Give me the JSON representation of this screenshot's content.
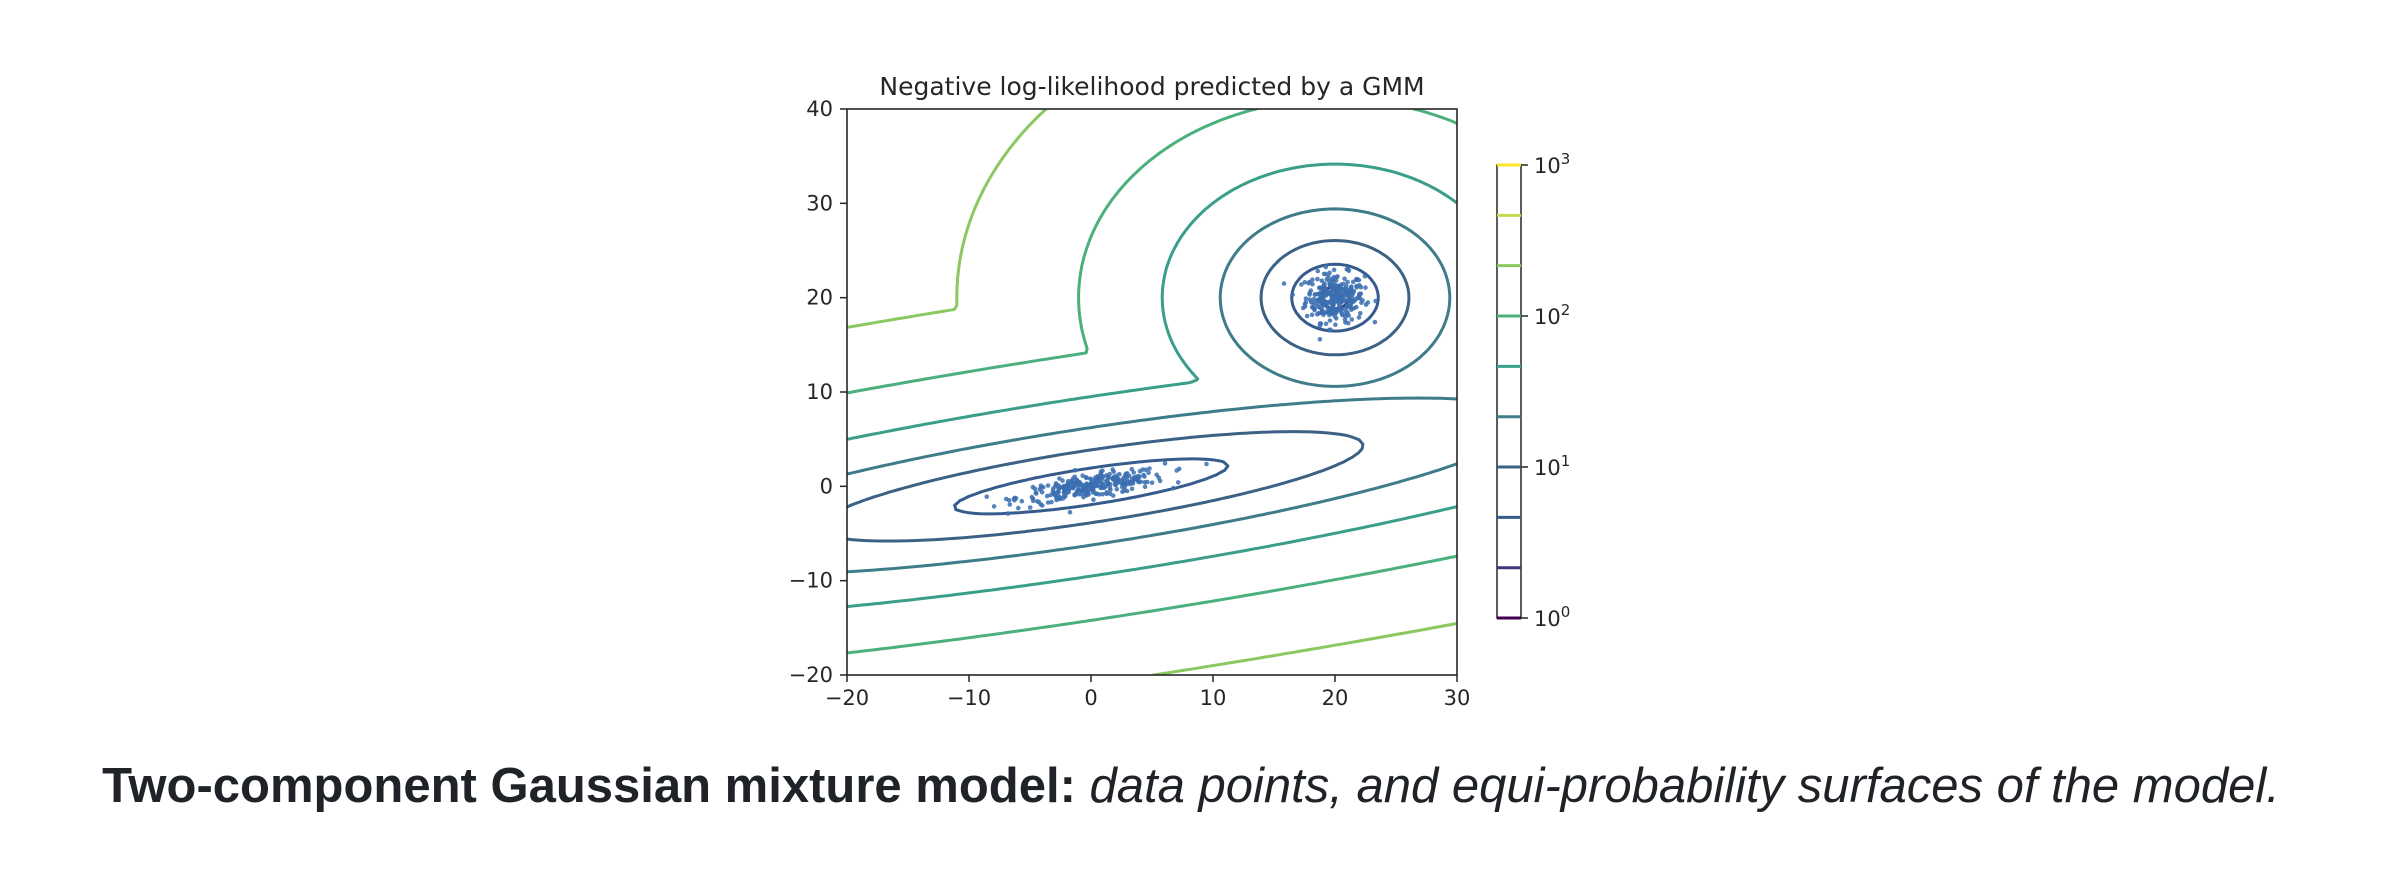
{
  "chart_data": {
    "type": "contour",
    "title": "Negative log-likelihood predicted by a GMM",
    "xlabel": "",
    "ylabel": "",
    "xlim": [
      -20,
      30
    ],
    "ylim": [
      -20,
      40
    ],
    "x_ticks": [
      "−20",
      "−10",
      "0",
      "10",
      "20",
      "30"
    ],
    "y_ticks": [
      "−20",
      "−10",
      "0",
      "10",
      "20",
      "30",
      "40"
    ],
    "grid": false,
    "components": [
      {
        "mean": [
          20,
          20
        ],
        "shape": "spherical"
      },
      {
        "mean": [
          0,
          0
        ],
        "shape": "elongated, tilted",
        "slope": 0.2
      }
    ],
    "scatter_clusters": [
      {
        "center": [
          20,
          20
        ],
        "spread": [
          1.2,
          1.3
        ],
        "count": 300,
        "color": "#3b6fb0"
      },
      {
        "center": [
          0,
          0
        ],
        "spread": [
          3.0,
          0.6
        ],
        "slope": 0.2,
        "count": 300,
        "color": "#3b6fb0"
      }
    ],
    "contour_levels": [
      {
        "value": 1.0,
        "color": "#440154"
      },
      {
        "value": 2.15,
        "color": "#46337e"
      },
      {
        "value": 4.64,
        "color": "#365c8d"
      },
      {
        "value": 10.0,
        "color": "#3b6285"
      },
      {
        "value": 21.5,
        "color": "#3f7c8a"
      },
      {
        "value": 46.4,
        "color": "#3a9e8a"
      },
      {
        "value": 100.0,
        "color": "#4bb07c"
      },
      {
        "value": 215.4,
        "color": "#8bc860"
      },
      {
        "value": 464.2,
        "color": "#c6d94e"
      },
      {
        "value": 1000.0,
        "color": "#fde725"
      }
    ],
    "colorbar": {
      "scale": "log",
      "range": [
        1,
        1000
      ],
      "tick_base": "10",
      "tick_exponents": [
        "3",
        "2",
        "1",
        "0"
      ]
    }
  },
  "caption": {
    "lead": "Two-component Gaussian mixture model:",
    "rest": " data points, and equi-probability surfaces of the model."
  }
}
